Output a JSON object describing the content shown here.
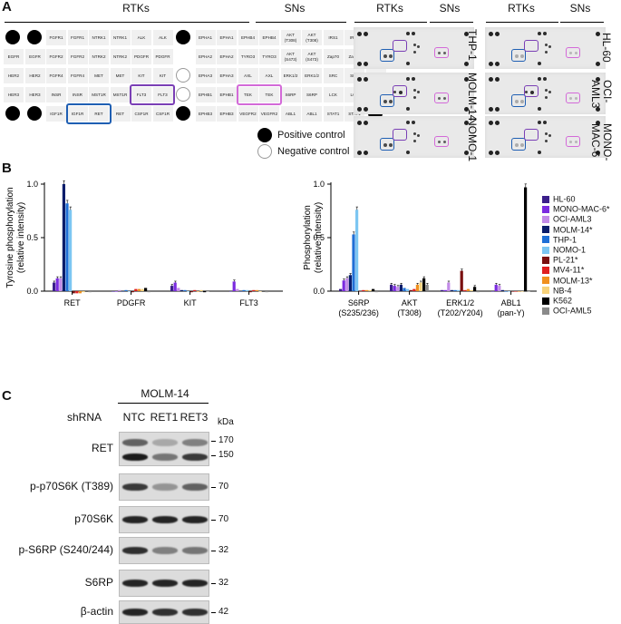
{
  "panel_a": {
    "letter": "A",
    "array_headers": {
      "rtks": "RTKs",
      "sns": "SNs"
    },
    "array_grid": {
      "row1": [
        "FGFR1",
        "FGFR1",
        "NTRK1",
        "NTRK1",
        "ALK",
        "ALK",
        "EPHA1",
        "EPHA1",
        "EPHB4",
        "EPHB4",
        "AKT (T308)",
        "AKT (T308)",
        "IRS1",
        "IRS1"
      ],
      "row2": [
        "EGFR",
        "EGFR",
        "FGFR2",
        "FGFR2",
        "NTRK2",
        "NTRK2",
        "PDGFR",
        "PDGFR",
        "EPHA2",
        "EPHA2",
        "TYRO3",
        "TYRO3",
        "AKT (S473)",
        "AKT (S473)",
        "Zap70",
        "Zap70"
      ],
      "row3": [
        "HER2",
        "HER2",
        "FGFR4",
        "FGFR4",
        "MET",
        "MET",
        "KIT",
        "KIT",
        "EPHA3",
        "EPHA3",
        "AXL",
        "AXL",
        "ERK1/2",
        "ERK1/2",
        "SRC",
        "SRC",
        "STAT3"
      ],
      "row4": [
        "HER3",
        "HER3",
        "INSR",
        "INSR",
        "MST1R",
        "MST1R",
        "FLT3",
        "FLT3",
        "EPHB1",
        "EPHB1",
        "TEK",
        "TEK",
        "S6RP",
        "S6RP",
        "LCK",
        "LCK",
        "STAT3"
      ],
      "row5": [
        "IGF1R",
        "IGF1R",
        "RET",
        "RET",
        "CSF1R",
        "CSF1R",
        "EPHB3",
        "EPHB3",
        "VEGFR2",
        "VEGFR2",
        "ABL1",
        "ABL1",
        "STAT1",
        "STAT1"
      ]
    },
    "legend": {
      "positive": "Positive control",
      "negative": "Negative control"
    },
    "blot_headers": [
      "RTKs",
      "SNs",
      "RTKs",
      "SNs"
    ],
    "cell_lines_left": [
      "THP-1",
      "MOLM-14",
      "NOMO-1"
    ],
    "cell_lines_right": [
      "HL-60",
      "OCI-AML3",
      "MONO-MAC-6"
    ],
    "colors": {
      "ret_box": "#1f5fb3",
      "flt3_box": "#7a3fb5",
      "s6rp_box": "#d36ad8"
    }
  },
  "panel_b": {
    "letter": "B",
    "legend": [
      {
        "name": "HL-60",
        "color": "#3b1f8a"
      },
      {
        "name": "MONO-MAC-6*",
        "color": "#7b2be0"
      },
      {
        "name": "OCI-AML3",
        "color": "#c28be8"
      },
      {
        "name": "MOLM-14*",
        "color": "#0a1d6b"
      },
      {
        "name": "THP-1",
        "color": "#1f6fd6"
      },
      {
        "name": "NOMO-1",
        "color": "#7cc6f2"
      },
      {
        "name": "PL-21*",
        "color": "#7a0f0f"
      },
      {
        "name": "MV4-11*",
        "color": "#e02020"
      },
      {
        "name": "MOLM-13*",
        "color": "#f0901e"
      },
      {
        "name": "NB-4",
        "color": "#f7d27a"
      },
      {
        "name": "K562",
        "color": "#000000"
      },
      {
        "name": "OCI-AML5",
        "color": "#8a8a8a"
      }
    ]
  },
  "chart_data": [
    {
      "type": "bar",
      "ylabel": "Tyrosine phosphorylation (relative intensity)",
      "ylim": [
        0,
        1.0
      ],
      "yticks": [
        "1.0",
        "0.5",
        "0.0"
      ],
      "categories": [
        "RET",
        "PDGFR",
        "KIT",
        "FLT3"
      ],
      "series": [
        {
          "name": "HL-60",
          "values": [
            0.08,
            0.0,
            0.05,
            0.0
          ]
        },
        {
          "name": "MONO-MAC-6*",
          "values": [
            0.12,
            0.0,
            0.08,
            0.09
          ]
        },
        {
          "name": "OCI-AML3",
          "values": [
            0.12,
            0.01,
            0.03,
            0.02
          ]
        },
        {
          "name": "MOLM-14*",
          "values": [
            1.0,
            0.0,
            0.01,
            0.0
          ]
        },
        {
          "name": "THP-1",
          "values": [
            0.82,
            0.01,
            0.01,
            0.01
          ]
        },
        {
          "name": "NOMO-1",
          "values": [
            0.76,
            0.0,
            0.0,
            0.01
          ]
        },
        {
          "name": "PL-21*",
          "values": [
            -0.02,
            -0.01,
            -0.01,
            -0.01
          ]
        },
        {
          "name": "MV4-11*",
          "values": [
            -0.02,
            0.02,
            0.01,
            0.01
          ]
        },
        {
          "name": "MOLM-13*",
          "values": [
            -0.02,
            0.02,
            0.0,
            0.01
          ]
        },
        {
          "name": "NB-4",
          "values": [
            -0.01,
            0.02,
            0.01,
            0.0
          ]
        },
        {
          "name": "K562",
          "values": [
            0.0,
            0.03,
            -0.01,
            0.0
          ]
        },
        {
          "name": "OCI-AML5",
          "values": [
            -0.01,
            -0.01,
            0.0,
            -0.01
          ]
        }
      ]
    },
    {
      "type": "bar",
      "ylabel": "Phosphorylation (relative intensity)",
      "ylim": [
        0,
        1.0
      ],
      "yticks": [
        "1.0",
        "0.5",
        "0.0"
      ],
      "categories": [
        "S6RP (S235/236)",
        "AKT (T308)",
        "ERK1/2 (T202/Y204)",
        "ABL1 (pan-Y)"
      ],
      "series": [
        {
          "name": "HL-60",
          "values": [
            0.02,
            0.06,
            0.01,
            0.0
          ]
        },
        {
          "name": "MONO-MAC-6*",
          "values": [
            0.1,
            0.05,
            0.01,
            0.06
          ]
        },
        {
          "name": "OCI-AML3",
          "values": [
            0.12,
            0.04,
            0.08,
            0.05
          ]
        },
        {
          "name": "MOLM-14*",
          "values": [
            0.15,
            0.06,
            0.01,
            0.01
          ]
        },
        {
          "name": "THP-1",
          "values": [
            0.53,
            0.03,
            0.01,
            0.0
          ]
        },
        {
          "name": "NOMO-1",
          "values": [
            0.76,
            0.02,
            0.01,
            0.0
          ]
        },
        {
          "name": "PL-21*",
          "values": [
            0.0,
            0.01,
            0.19,
            0.0
          ]
        },
        {
          "name": "MV4-11*",
          "values": [
            0.01,
            0.02,
            0.01,
            0.0
          ]
        },
        {
          "name": "MOLM-13*",
          "values": [
            0.01,
            0.06,
            0.02,
            0.0
          ]
        },
        {
          "name": "NB-4",
          "values": [
            0.01,
            0.08,
            0.01,
            0.0
          ]
        },
        {
          "name": "K562",
          "values": [
            0.02,
            0.12,
            0.04,
            0.97
          ]
        },
        {
          "name": "OCI-AML5",
          "values": [
            -0.01,
            0.06,
            -0.01,
            0.0
          ]
        }
      ]
    }
  ],
  "panel_c": {
    "letter": "C",
    "cell_line": "MOLM-14",
    "shrna_label": "shRNA",
    "lanes": [
      "NTC",
      "RET1",
      "RET3"
    ],
    "kda_label": "kDa",
    "rows": [
      {
        "label": "RET",
        "kda": [
          "170",
          "150"
        ]
      },
      {
        "label": "p-p70S6K (T389)",
        "kda": [
          "70"
        ]
      },
      {
        "label": "p70S6K",
        "kda": [
          "70"
        ]
      },
      {
        "label": "p-S6RP (S240/244)",
        "kda": [
          "32"
        ]
      },
      {
        "label": "S6RP",
        "kda": [
          "32"
        ]
      },
      {
        "label": "β-actin",
        "kda": [
          "42"
        ]
      }
    ]
  }
}
